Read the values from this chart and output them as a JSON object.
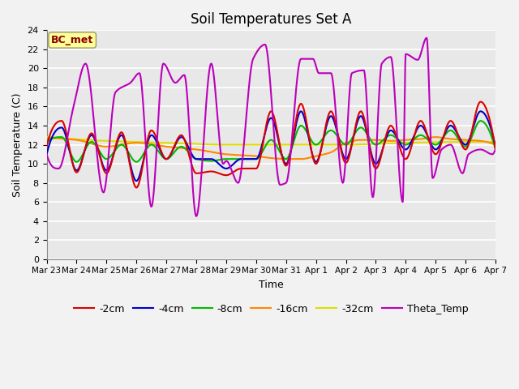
{
  "title": "Soil Temperatures Set A",
  "xlabel": "Time",
  "ylabel": "Soil Temperature (C)",
  "annotation_text": "BC_met",
  "annotation_color": "#8B0000",
  "annotation_bg": "#FFFF99",
  "ylim": [
    0,
    24
  ],
  "yticks": [
    0,
    2,
    4,
    6,
    8,
    10,
    12,
    14,
    16,
    18,
    20,
    22,
    24
  ],
  "bg_color": "#E8E8E8",
  "grid_color": "#FFFFFF",
  "series_colors": {
    "-2cm": "#DD0000",
    "-4cm": "#0000CC",
    "-8cm": "#00BB00",
    "-16cm": "#FF8800",
    "-32cm": "#DDDD00",
    "Theta_Temp": "#BB00BB"
  },
  "tick_labels": [
    "Mar 23",
    "Mar 24",
    "Mar 25",
    "Mar 26",
    "Mar 27",
    "Mar 28",
    "Mar 29",
    "Mar 30",
    "Mar 31",
    "Apr 1",
    "Apr 2",
    "Apr 3",
    "Apr 4",
    "Apr 5",
    "Apr 6",
    "Apr 7"
  ],
  "figsize": [
    6.4,
    4.8
  ],
  "dpi": 100,
  "title_fontsize": 12,
  "label_fontsize": 9,
  "tick_fontsize": 8,
  "legend_fontsize": 9,
  "theta_keypoints_x": [
    0,
    0.4,
    0.9,
    1.3,
    1.9,
    2.3,
    2.8,
    3.1,
    3.5,
    3.9,
    4.3,
    4.6,
    5.0,
    5.5,
    5.9,
    6.0,
    6.4,
    6.9,
    7.3,
    7.8,
    8.0,
    8.5,
    8.9,
    9.1,
    9.5,
    9.9,
    10.2,
    10.6,
    10.9,
    11.2,
    11.5,
    11.9,
    12.0,
    12.4,
    12.7,
    12.9,
    13.2,
    13.5,
    13.9,
    14.1,
    14.5,
    14.9,
    15.0
  ],
  "theta_keypoints_y": [
    11.0,
    9.5,
    16.0,
    20.5,
    7.0,
    17.5,
    18.5,
    19.5,
    5.5,
    20.5,
    18.5,
    19.3,
    4.5,
    20.5,
    10.0,
    10.3,
    8.0,
    21.0,
    22.5,
    7.8,
    8.0,
    21.0,
    21.0,
    19.5,
    19.5,
    8.0,
    19.5,
    19.8,
    6.5,
    20.5,
    21.2,
    6.0,
    21.5,
    20.9,
    23.2,
    8.5,
    11.5,
    12.0,
    9.0,
    11.0,
    11.5,
    11.0,
    11.5
  ],
  "s2_keypoints_x": [
    0,
    0.5,
    1.0,
    1.5,
    2.0,
    2.5,
    3.0,
    3.5,
    4.0,
    4.5,
    5.0,
    5.5,
    6.0,
    6.5,
    7.0,
    7.5,
    8.0,
    8.5,
    9.0,
    9.5,
    10.0,
    10.5,
    11.0,
    11.5,
    12.0,
    12.5,
    13.0,
    13.5,
    14.0,
    14.5,
    15.0
  ],
  "s2_keypoints_y": [
    11.8,
    14.5,
    9.1,
    13.2,
    9.0,
    13.3,
    7.5,
    13.5,
    10.5,
    13.0,
    9.0,
    9.2,
    8.8,
    9.5,
    9.5,
    15.5,
    9.8,
    16.3,
    10.0,
    15.5,
    10.1,
    15.5,
    9.5,
    14.0,
    10.5,
    14.5,
    11.0,
    14.5,
    11.5,
    16.5,
    11.5
  ],
  "s4_keypoints_x": [
    0,
    0.5,
    1.0,
    1.5,
    2.0,
    2.5,
    3.0,
    3.5,
    4.0,
    4.5,
    5.0,
    5.5,
    6.0,
    6.5,
    7.0,
    7.5,
    8.0,
    8.5,
    9.0,
    9.5,
    10.0,
    10.5,
    11.0,
    11.5,
    12.0,
    12.5,
    13.0,
    13.5,
    14.0,
    14.5,
    15.0
  ],
  "s4_keypoints_y": [
    11.0,
    13.8,
    9.3,
    13.0,
    9.3,
    13.0,
    8.2,
    13.0,
    10.5,
    12.8,
    10.5,
    10.5,
    9.5,
    10.5,
    10.5,
    14.8,
    10.0,
    15.5,
    10.2,
    15.0,
    10.5,
    15.0,
    10.0,
    13.5,
    11.5,
    14.0,
    11.5,
    14.0,
    12.0,
    15.5,
    11.8
  ],
  "s8_keypoints_x": [
    0,
    0.5,
    1.0,
    1.5,
    2.0,
    2.5,
    3.0,
    3.5,
    4.0,
    4.5,
    5.0,
    5.5,
    6.0,
    6.5,
    7.0,
    7.5,
    8.0,
    8.5,
    9.0,
    9.5,
    10.0,
    10.5,
    11.0,
    11.5,
    12.0,
    12.5,
    13.0,
    13.5,
    14.0,
    14.5,
    15.0
  ],
  "s8_keypoints_y": [
    12.2,
    12.8,
    10.2,
    12.3,
    10.5,
    12.0,
    10.2,
    12.0,
    10.5,
    11.8,
    10.5,
    10.3,
    10.5,
    10.5,
    10.5,
    12.5,
    10.5,
    14.0,
    12.0,
    13.5,
    12.0,
    13.8,
    12.0,
    13.0,
    12.0,
    13.0,
    12.0,
    13.5,
    11.8,
    14.5,
    11.5
  ],
  "s16_keypoints_x": [
    0,
    1.0,
    2.0,
    3.0,
    4.0,
    5.0,
    6.0,
    7.0,
    7.5,
    8.0,
    8.5,
    9.0,
    9.5,
    10.0,
    10.5,
    11.0,
    11.5,
    12.0,
    12.5,
    13.0,
    13.5,
    14.0,
    14.5,
    15.0
  ],
  "s16_keypoints_y": [
    12.7,
    12.5,
    11.8,
    12.2,
    11.8,
    11.5,
    11.0,
    10.8,
    10.6,
    10.5,
    10.5,
    10.8,
    11.2,
    12.2,
    12.5,
    12.5,
    12.4,
    12.5,
    12.6,
    12.8,
    12.6,
    12.5,
    12.4,
    12.0
  ],
  "s32_keypoints_x": [
    0,
    2.0,
    4.0,
    6.0,
    8.0,
    10.0,
    12.0,
    14.0,
    15.0
  ],
  "s32_keypoints_y": [
    12.8,
    12.4,
    12.2,
    12.0,
    12.0,
    12.0,
    12.2,
    12.3,
    12.3
  ]
}
